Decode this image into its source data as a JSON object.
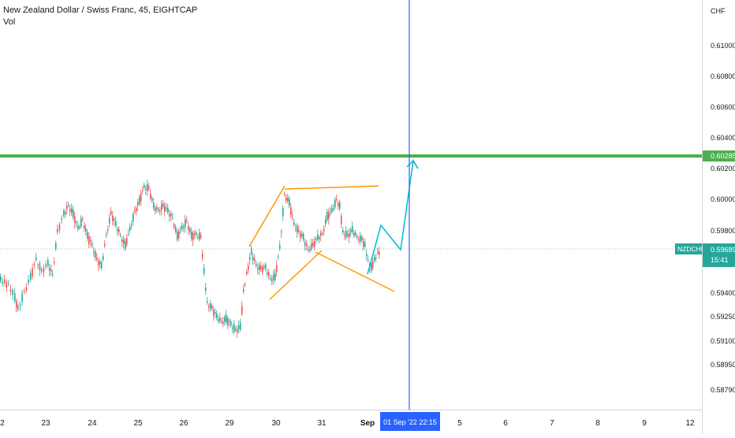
{
  "legend": {
    "title": "New Zealand Dollar / Swiss Franc, 45, EIGHTCAP",
    "indicator": "Vol"
  },
  "price_axis": {
    "currency": "CHF",
    "ticks": [
      "0.61000",
      "0.60800",
      "0.60600",
      "0.60400",
      "0.60200",
      "0.60000",
      "0.59800",
      "0.59400",
      "0.59250",
      "0.59100",
      "0.58950",
      "0.58790"
    ],
    "horizontal_level_label": "0.60285",
    "symbol_label": "NZDCHF",
    "current_price": "0.59689",
    "countdown": "15:41"
  },
  "time_axis": {
    "ticks": [
      "2",
      "23",
      "24",
      "25",
      "26",
      "29",
      "30",
      "31",
      "Sep",
      "5",
      "6",
      "7",
      "8",
      "9",
      "12"
    ],
    "crosshair_label": "01 Sep '22   22:15"
  },
  "colors": {
    "up": "#26a69a",
    "down": "#ef5350",
    "level_line": "#4caf50",
    "pattern": "#ff9800",
    "projection": "#00bcd4",
    "crosshair": "#2962ff",
    "price_label_bg": "#26a69a"
  },
  "chart_data": {
    "type": "candlestick",
    "symbol": "NZDCHF",
    "timeframe": "45",
    "y_scale": "unevenly spaced price labels as printed",
    "horizontal_level": 0.60285,
    "current_price": 0.59689,
    "annotations": [
      "horizontal support/resistance line",
      "triangle / broadening pattern drawn in orange",
      "projected zig-zag path in cyan",
      "vertical crosshair at 01 Sep '22 22:15"
    ]
  }
}
